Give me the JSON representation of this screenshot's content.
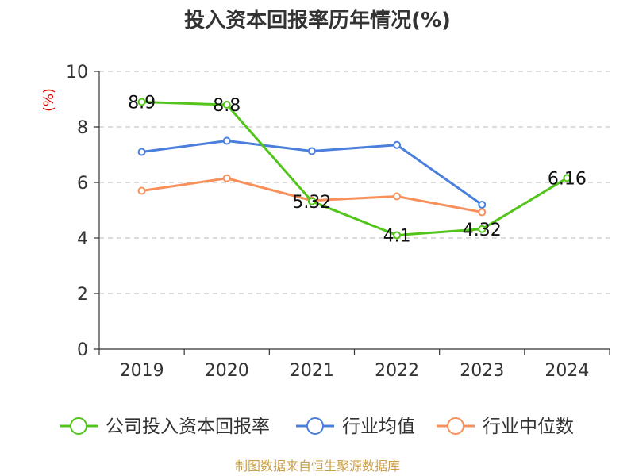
{
  "chart_data": {
    "type": "line",
    "title": "投入资本回报率历年情况(%)",
    "ylabel": "(%)",
    "xlabel": "",
    "categories": [
      "2019",
      "2020",
      "2021",
      "2022",
      "2023",
      "2024"
    ],
    "ylim": [
      0,
      10
    ],
    "yticks": [
      0,
      2,
      4,
      6,
      8,
      10
    ],
    "grid": true,
    "legend_position": "bottom",
    "series": [
      {
        "name": "公司投入资本回报率",
        "color": "#52c41a",
        "values": [
          8.9,
          8.8,
          5.32,
          4.1,
          4.32,
          6.16
        ],
        "labels": [
          "8.9",
          "8.8",
          "5.32",
          "4.1",
          "4.32",
          "6.16"
        ]
      },
      {
        "name": "行业均值",
        "color": "#4a7fdc",
        "values": [
          7.1,
          7.5,
          7.13,
          7.35,
          5.2,
          null
        ]
      },
      {
        "name": "行业中位数",
        "color": "#f7905a",
        "values": [
          5.7,
          6.15,
          5.35,
          5.5,
          4.93,
          null
        ]
      }
    ]
  },
  "source": "制图数据来自恒生聚源数据库"
}
